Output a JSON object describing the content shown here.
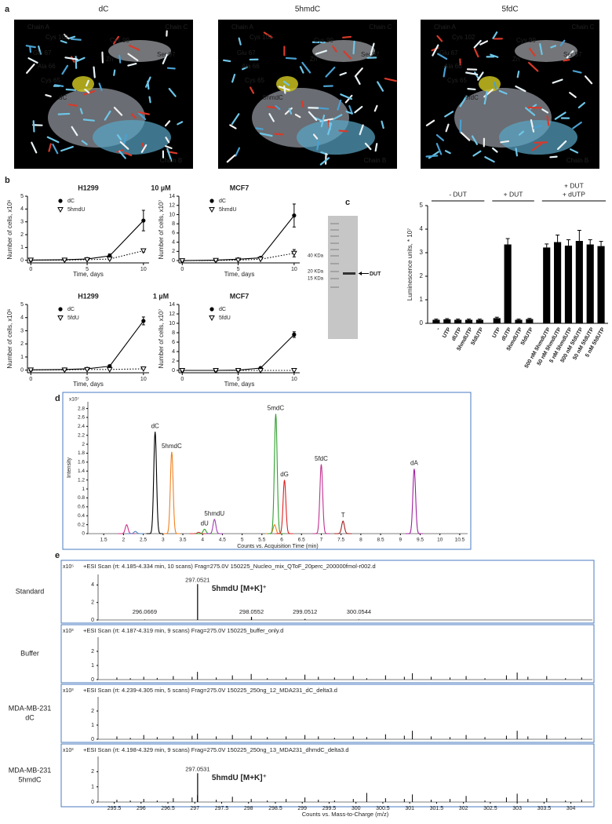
{
  "figure": {
    "panel_labels": [
      "a",
      "b",
      "c",
      "d",
      "e"
    ],
    "structures": [
      {
        "title": "dC",
        "labels": [
          {
            "text": "Chain A",
            "color": "#e8533a"
          },
          {
            "text": "Cys 102",
            "color": "#f06a3f"
          },
          {
            "text": "Cys 99",
            "color": "#f06a3f"
          },
          {
            "text": "Glu 67",
            "color": "#f06a3f"
          },
          {
            "text": "Zn",
            "color": "#c060d0"
          },
          {
            "text": "Ser 97",
            "color": "#f06a3f"
          },
          {
            "text": "Ala 66",
            "color": "#f06a3f"
          },
          {
            "text": "Cys 65",
            "color": "#f06a3f"
          },
          {
            "text": "dC",
            "color": "#5ec45a"
          },
          {
            "text": "Chain C",
            "color": "#e6e04a"
          },
          {
            "text": "Chain B",
            "color": "#5ec8e0"
          }
        ]
      },
      {
        "title": "5hmdC",
        "labels": [
          {
            "text": "Chain A",
            "color": "#e8533a"
          },
          {
            "text": "Cys 102",
            "color": "#f06a3f"
          },
          {
            "text": "Cys 99",
            "color": "#f06a3f"
          },
          {
            "text": "Glu 67",
            "color": "#f06a3f"
          },
          {
            "text": "Zn",
            "color": "#c060d0"
          },
          {
            "text": "Ser 97",
            "color": "#f06a3f"
          },
          {
            "text": "Ala 66",
            "color": "#f06a3f"
          },
          {
            "text": "Cys 65",
            "color": "#f06a3f"
          },
          {
            "text": "5hmdC",
            "color": "#5ec45a"
          },
          {
            "text": "Chain C",
            "color": "#e6e04a"
          },
          {
            "text": "Chain B",
            "color": "#5ec8e0"
          }
        ]
      },
      {
        "title": "5fdC",
        "labels": [
          {
            "text": "Chain A",
            "color": "#e8533a"
          },
          {
            "text": "Cys 102",
            "color": "#f06a3f"
          },
          {
            "text": "Cys 99",
            "color": "#f06a3f"
          },
          {
            "text": "Glu 67",
            "color": "#f06a3f"
          },
          {
            "text": "Zn",
            "color": "#c060d0"
          },
          {
            "text": "Ser 97",
            "color": "#f06a3f"
          },
          {
            "text": "Ala 66",
            "color": "#f06a3f"
          },
          {
            "text": "Cys 65",
            "color": "#f06a3f"
          },
          {
            "text": "5fdC",
            "color": "#5ec45a"
          },
          {
            "text": "Chain C",
            "color": "#e6e04a"
          },
          {
            "text": "Chain B",
            "color": "#5ec8e0"
          }
        ]
      }
    ],
    "conditions": [
      "10 µM",
      "1 µM"
    ],
    "gel": {
      "markers": [
        "40 KDa",
        "20 KDa",
        "15 KDa"
      ],
      "band": "DUT"
    }
  },
  "chart_data": [
    {
      "type": "line",
      "title": "H1299",
      "xlabel": "Time, days",
      "ylabel": "Number of cells, x10⁶",
      "x": [
        0,
        3,
        5,
        7,
        10
      ],
      "xlim": [
        -0.3,
        10.5
      ],
      "xticks": [
        0,
        5,
        10
      ],
      "ylim": [
        -0.2,
        5
      ],
      "yticks": [
        0,
        1,
        2,
        3,
        4,
        5
      ],
      "series": [
        {
          "name": "dC",
          "color": "#000000",
          "marker": "circle",
          "dash": false,
          "values": [
            0.02,
            0.05,
            0.1,
            0.35,
            3.1
          ],
          "errors": [
            0.02,
            0.02,
            0.05,
            0.15,
            0.8
          ]
        },
        {
          "name": "5hmdU",
          "color": "#000000",
          "marker": "triangle",
          "dash": true,
          "values": [
            0.02,
            0.02,
            0.05,
            0.1,
            0.75
          ],
          "errors": [
            0,
            0,
            0,
            0.05,
            0.1
          ]
        }
      ]
    },
    {
      "type": "line",
      "title": "MCF7",
      "xlabel": "Time, days",
      "ylabel": "Number of cells, x10⁷",
      "x": [
        0,
        3,
        5,
        7,
        10
      ],
      "xlim": [
        -0.3,
        10.5
      ],
      "xticks": [
        0,
        5,
        10
      ],
      "ylim": [
        -0.5,
        14
      ],
      "yticks": [
        0,
        2,
        4,
        6,
        8,
        10,
        12,
        14
      ],
      "series": [
        {
          "name": "dC",
          "color": "#000000",
          "marker": "circle",
          "dash": false,
          "values": [
            0,
            0.1,
            0.3,
            0.6,
            9.8
          ],
          "errors": [
            0,
            0.1,
            0.1,
            0.2,
            2.5
          ]
        },
        {
          "name": "5hmdU",
          "color": "#000000",
          "marker": "triangle",
          "dash": true,
          "values": [
            0,
            0.05,
            0.1,
            0.3,
            1.6
          ],
          "errors": [
            0,
            0,
            0.05,
            0.1,
            0.8
          ]
        }
      ]
    },
    {
      "type": "line",
      "title": "H1299",
      "xlabel": "Time, days",
      "ylabel": "Number of cells, x10⁶",
      "x": [
        0,
        3,
        5,
        7,
        10
      ],
      "xlim": [
        -0.3,
        10.5
      ],
      "xticks": [
        0,
        5,
        10
      ],
      "ylim": [
        -0.2,
        5
      ],
      "yticks": [
        0,
        1,
        2,
        3,
        4,
        5
      ],
      "series": [
        {
          "name": "dC",
          "color": "#000000",
          "marker": "circle",
          "dash": false,
          "values": [
            0.02,
            0.05,
            0.1,
            0.3,
            3.75
          ],
          "errors": [
            0,
            0.02,
            0.05,
            0.1,
            0.3
          ]
        },
        {
          "name": "5fdU",
          "color": "#000000",
          "marker": "triangle",
          "dash": true,
          "values": [
            0.02,
            0.02,
            0.05,
            0.05,
            0.1
          ],
          "errors": [
            0,
            0,
            0,
            0,
            0
          ]
        }
      ]
    },
    {
      "type": "line",
      "title": "MCF7",
      "xlabel": "Time, days",
      "ylabel": "Number of cells, x10⁷",
      "x": [
        0,
        3,
        5,
        7,
        10
      ],
      "xlim": [
        -0.3,
        10.5
      ],
      "xticks": [
        0,
        5,
        10
      ],
      "ylim": [
        -0.5,
        14
      ],
      "yticks": [
        0,
        2,
        4,
        6,
        8,
        10,
        12,
        14
      ],
      "series": [
        {
          "name": "dC",
          "color": "#000000",
          "marker": "circle",
          "dash": false,
          "values": [
            0,
            0,
            0.05,
            0.5,
            7.6
          ],
          "errors": [
            0,
            0,
            0.05,
            0.2,
            0.6
          ]
        },
        {
          "name": "5fdU",
          "color": "#000000",
          "marker": "triangle",
          "dash": true,
          "values": [
            0,
            0,
            0,
            0,
            0
          ],
          "errors": [
            0,
            0,
            0,
            0,
            0
          ]
        }
      ]
    },
    {
      "type": "bar",
      "ylabel": "Luminescence units, * 10⁷",
      "ylim": [
        0,
        5
      ],
      "yticks": [
        0,
        1,
        2,
        3,
        4,
        5
      ],
      "color": "#000000",
      "groups": [
        {
          "label": [
            "- DUT"
          ],
          "categories": [
            "-",
            "UTP",
            "dUTP",
            "5hmdUTP",
            "5fdUTP"
          ],
          "values": [
            0.15,
            0.17,
            0.15,
            0.15,
            0.15
          ],
          "errors": [
            0.03,
            0.03,
            0.03,
            0.03,
            0.03
          ]
        },
        {
          "label": [
            "+ DUT"
          ],
          "categories": [
            "UTP",
            "dUTP",
            "5hmdUTP",
            "5fdUTP"
          ],
          "values": [
            0.22,
            3.35,
            0.15,
            0.18
          ],
          "errors": [
            0.04,
            0.25,
            0.03,
            0.03
          ]
        },
        {
          "label": [
            "+ DUT",
            "+ dUTP"
          ],
          "categories": [
            "500 nM 5hmdUTP",
            "50 nM 5hmdUTP",
            "5 nM 5hmdUTP",
            "500 nM 5fdUTP",
            "50 nM 5fdUTP",
            "5 nM 5fdUTP"
          ],
          "values": [
            3.22,
            3.45,
            3.3,
            3.5,
            3.35,
            3.28
          ],
          "errors": [
            0.15,
            0.3,
            0.25,
            0.45,
            0.2,
            0.2
          ]
        }
      ]
    },
    {
      "type": "chromatogram",
      "xlabel": "Counts vs. Acquisition Time (min)",
      "ylabel": "Intensity",
      "y_multiplier": "x10⁷",
      "xlim": [
        1.1,
        10.7
      ],
      "xticks": [
        1.5,
        2,
        2.5,
        3,
        3.5,
        4,
        4.5,
        5,
        5.5,
        6,
        6.5,
        7,
        7.5,
        8,
        8.5,
        9,
        9.5,
        10,
        10.5
      ],
      "ylim": [
        0,
        2.95
      ],
      "yticks": [
        0,
        0.2,
        0.4,
        0.6,
        0.8,
        1,
        1.2,
        1.4,
        1.6,
        1.8,
        2,
        2.2,
        2.4,
        2.6,
        2.8
      ],
      "peaks": [
        {
          "x": 2.08,
          "value": 0.2,
          "color": "#d0308a"
        },
        {
          "x": 2.3,
          "value": 0.05,
          "color": "#5080c0"
        },
        {
          "x": 2.8,
          "value": 2.28,
          "color": "#000000",
          "label": "dC"
        },
        {
          "x": 3.22,
          "value": 1.83,
          "color": "#f08020",
          "label": "5hmdC"
        },
        {
          "x": 3.9,
          "value": 0.03,
          "color": "#d03030"
        },
        {
          "x": 4.05,
          "value": 0.1,
          "color": "#30a030",
          "label": "dU"
        },
        {
          "x": 4.3,
          "value": 0.32,
          "color": "#a040b0",
          "label": "5hmdU"
        },
        {
          "x": 5.82,
          "value": 0.2,
          "color": "#f08020"
        },
        {
          "x": 5.85,
          "value": 2.68,
          "color": "#30a030",
          "label": "5mdC"
        },
        {
          "x": 6.07,
          "value": 1.2,
          "color": "#e02020",
          "label": "dG"
        },
        {
          "x": 7.0,
          "value": 1.55,
          "color": "#c03090",
          "label": "5fdC"
        },
        {
          "x": 7.55,
          "value": 0.28,
          "color": "#a02020",
          "label": "T"
        },
        {
          "x": 9.35,
          "value": 1.45,
          "color": "#a020a0",
          "label": "dA"
        }
      ]
    },
    {
      "type": "spectrum",
      "row_label": [
        "Standard"
      ],
      "header": "+ESI Scan (rt: 4.185-4.334 min, 10 scans) Frag=275.0V 150225_Nucleo_mix_QToF_20perc_200000fmol-r002.d",
      "y_multiplier": "x10⁵",
      "xlim": [
        295.2,
        304.4
      ],
      "ylim": [
        0,
        5.2
      ],
      "yticks": [
        0,
        2,
        4
      ],
      "color": "#000000",
      "labeled_peaks": {
        "x": [
          296.0669,
          297.0521,
          298.0552,
          299.0512,
          300.0544
        ],
        "values": [
          0.05,
          4.1,
          0.35,
          0.12,
          0.05
        ]
      },
      "annotation": "5hmdU [M+K]⁺",
      "annotation_color": "#a040a0"
    },
    {
      "type": "spectrum",
      "row_label": [
        "Buffer"
      ],
      "header": "+ESI Scan (rt: 4.187-4.319 min, 9 scans) Frag=275.0V 150225_buffer_only.d",
      "y_multiplier": "x10³",
      "xlim": [
        295.2,
        304.4
      ],
      "ylim": [
        0,
        3
      ],
      "yticks": [
        0,
        1,
        2
      ],
      "color": "#000000",
      "peaks": {
        "x": [
          295.55,
          295.8,
          296.05,
          296.3,
          296.6,
          296.95,
          297.05,
          297.4,
          297.7,
          298.05,
          298.35,
          298.7,
          299.05,
          299.3,
          299.6,
          299.95,
          300.2,
          300.55,
          300.9,
          301.05,
          301.4,
          301.75,
          302.05,
          302.4,
          302.8,
          303.0,
          303.2,
          303.55,
          303.9,
          304.2
        ],
        "values": [
          0.15,
          0.1,
          0.2,
          0.12,
          0.25,
          0.2,
          0.55,
          0.15,
          0.3,
          0.4,
          0.1,
          0.15,
          0.35,
          0.2,
          0.15,
          0.25,
          0.1,
          0.3,
          0.2,
          0.45,
          0.2,
          0.15,
          0.25,
          0.1,
          0.3,
          0.5,
          0.2,
          0.25,
          0.1,
          0.15
        ]
      }
    },
    {
      "type": "spectrum",
      "row_label": [
        "MDA-MB-231",
        "dC"
      ],
      "header": "+ESI Scan (rt: 4.239-4.305 min, 5 scans) Frag=275.0V 150225_250ng_12_MDA231_dC_delta3.d",
      "y_multiplier": "x10³",
      "xlim": [
        295.2,
        304.4
      ],
      "ylim": [
        0,
        3
      ],
      "yticks": [
        0,
        1,
        2
      ],
      "color": "#000000",
      "peaks": {
        "x": [
          295.55,
          295.8,
          296.05,
          296.3,
          296.6,
          296.95,
          297.05,
          297.4,
          297.7,
          298.05,
          298.35,
          298.7,
          299.05,
          299.3,
          299.6,
          299.95,
          300.2,
          300.55,
          300.9,
          301.05,
          301.4,
          301.75,
          302.05,
          302.4,
          302.8,
          303.0,
          303.2,
          303.55,
          303.9,
          304.2
        ],
        "values": [
          0.2,
          0.1,
          0.3,
          0.15,
          0.2,
          0.25,
          0.4,
          0.2,
          0.3,
          0.25,
          0.15,
          0.2,
          0.3,
          0.2,
          0.1,
          0.2,
          0.15,
          0.35,
          0.25,
          0.6,
          0.2,
          0.15,
          0.3,
          0.15,
          0.25,
          0.6,
          0.2,
          0.3,
          0.15,
          0.1
        ]
      }
    },
    {
      "type": "spectrum",
      "row_label": [
        "MDA-MB-231",
        "5hmdC"
      ],
      "header": "+ESI Scan (rt: 4.198-4.329 min, 9 scans) Frag=275.0V 150225_250ng_13_MDA231_dhmdC_delta3.d",
      "y_multiplier": "x10³",
      "xlim": [
        295.2,
        304.4
      ],
      "ylim": [
        0,
        3
      ],
      "yticks": [
        0,
        1,
        2
      ],
      "color": "#000000",
      "xticks": [
        295.5,
        296,
        296.5,
        297,
        297.5,
        298,
        298.5,
        299,
        299.5,
        300,
        300.5,
        301,
        301.5,
        302,
        302.5,
        303,
        303.5,
        304
      ],
      "xlabel": "Counts vs. Mass-to-Charge (m/z)",
      "peaks": {
        "x": [
          295.55,
          295.8,
          296.05,
          296.3,
          296.6,
          296.95,
          297.05,
          297.4,
          297.7,
          298.05,
          298.35,
          298.7,
          299.05,
          299.3,
          299.6,
          299.95,
          300.2,
          300.55,
          300.9,
          301.05,
          301.4,
          301.75,
          302.05,
          302.4,
          302.8,
          303.0,
          303.2,
          303.55,
          303.9,
          304.2
        ],
        "values": [
          0.15,
          0.1,
          0.2,
          0.1,
          0.25,
          0.3,
          0.45,
          0.15,
          0.35,
          0.2,
          0.1,
          0.2,
          0.3,
          0.15,
          0.1,
          0.2,
          0.6,
          0.25,
          0.2,
          0.5,
          0.15,
          0.2,
          0.4,
          0.1,
          0.3,
          0.55,
          0.2,
          0.25,
          0.1,
          0.15
        ]
      },
      "labeled_peaks": {
        "x": [
          297.0531
        ],
        "values": [
          1.9
        ]
      },
      "annotation": "5hmdU [M+K]⁺",
      "annotation_color": "#a040a0"
    }
  ]
}
